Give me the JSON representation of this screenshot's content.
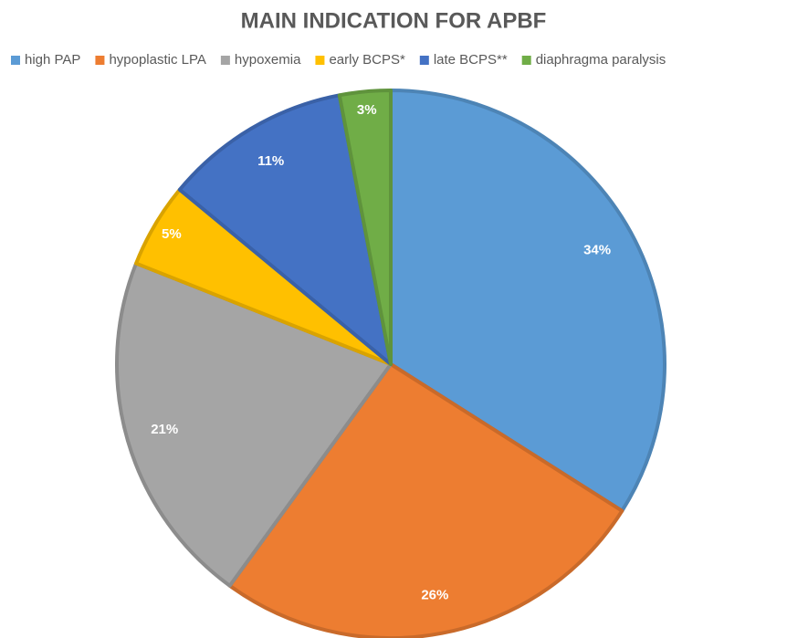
{
  "chart_data": {
    "type": "pie",
    "title": "MAIN INDICATION FOR APBF",
    "categories": [
      "high PAP",
      "hypoplastic LPA",
      "hypoxemia",
      "early BCPS*",
      "late BCPS**",
      "diaphragma paralysis"
    ],
    "values": [
      34,
      26,
      21,
      5,
      11,
      3
    ],
    "value_labels": [
      "34%",
      "26%",
      "21%",
      "5%",
      "11%",
      "3%"
    ],
    "colors": [
      "#5b9bd5",
      "#ed7d31",
      "#a5a5a5",
      "#ffc000",
      "#4472c4",
      "#70ad47"
    ],
    "legend": "top"
  }
}
